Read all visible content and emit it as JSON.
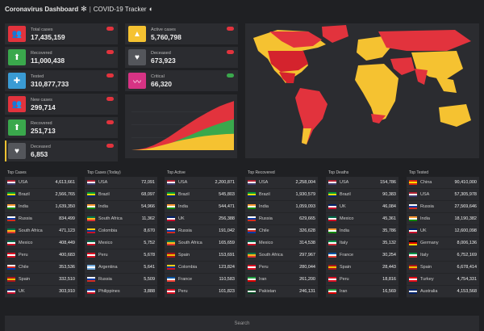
{
  "header": {
    "title": "Coronavirus Dashboard",
    "subtitle": "COVID-19 Tracker"
  },
  "stats": [
    {
      "label": "Total cases",
      "value": "17,435,159",
      "color": "#e2333d",
      "icon": "people-icon"
    },
    {
      "label": "Recovered",
      "value": "11,000,438",
      "color": "#3aa84c",
      "icon": "arrow-up-icon"
    },
    {
      "label": "Tested",
      "value": "310,877,733",
      "color": "#3a9bd4",
      "icon": "syringe-icon"
    },
    {
      "label": "New cases",
      "value": "299,714",
      "color": "#e2333d",
      "icon": "people-icon"
    },
    {
      "label": "Recovered",
      "value": "251,713",
      "color": "#3aa84c",
      "icon": "arrow-up-icon"
    },
    {
      "label": "Deceased",
      "value": "6,853",
      "color": "#54565b",
      "icon": "broken-heart-icon"
    },
    {
      "label": "Active cases",
      "value": "5,760,798",
      "color": "#f5c231",
      "icon": "warning-icon"
    },
    {
      "label": "Deceased",
      "value": "673,923",
      "color": "#54565b",
      "icon": "broken-heart-icon"
    },
    {
      "label": "Critical",
      "value": "66,320",
      "color": "#d63384",
      "icon": "pulse-icon"
    }
  ],
  "chart_data": {
    "type": "area",
    "series": [
      {
        "color": "#e2333d",
        "values": [
          0,
          0.3,
          0.8,
          1.7,
          3.0,
          4.5,
          6.2,
          8.0,
          9.7,
          11.3,
          12.8,
          14.2,
          15.5,
          16.5,
          17.4
        ]
      },
      {
        "color": "#3aa84c",
        "values": [
          0,
          0.1,
          0.3,
          0.7,
          1.3,
          2.1,
          3.1,
          4.2,
          5.3,
          6.4,
          7.5,
          8.5,
          9.4,
          10.2,
          11.0
        ]
      },
      {
        "color": "#f5c231",
        "values": [
          0,
          0.15,
          0.4,
          0.9,
          1.6,
          2.3,
          3.0,
          3.6,
          4.1,
          4.6,
          5.0,
          5.3,
          5.5,
          5.7,
          5.8
        ]
      }
    ]
  },
  "tables": [
    {
      "title": "Top Cases",
      "rows": [
        {
          "country": "USA",
          "value": "4,613,661",
          "flag": "us"
        },
        {
          "country": "Brazil",
          "value": "2,566,765",
          "flag": "br"
        },
        {
          "country": "India",
          "value": "1,639,350",
          "flag": "in"
        },
        {
          "country": "Russia",
          "value": "834,499",
          "flag": "ru"
        },
        {
          "country": "South Africa",
          "value": "471,123",
          "flag": "za"
        },
        {
          "country": "Mexico",
          "value": "408,449",
          "flag": "mx"
        },
        {
          "country": "Peru",
          "value": "400,683",
          "flag": "pe"
        },
        {
          "country": "Chile",
          "value": "353,536",
          "flag": "cl"
        },
        {
          "country": "Spain",
          "value": "332,510",
          "flag": "es"
        },
        {
          "country": "UK",
          "value": "303,910",
          "flag": "gb"
        }
      ]
    },
    {
      "title": "Top Cases (Today)",
      "rows": [
        {
          "country": "USA",
          "value": "72,091",
          "flag": "us"
        },
        {
          "country": "Brazil",
          "value": "68,097",
          "flag": "br"
        },
        {
          "country": "India",
          "value": "54,966",
          "flag": "in"
        },
        {
          "country": "South Africa",
          "value": "11,362",
          "flag": "za"
        },
        {
          "country": "Colombia",
          "value": "8,670",
          "flag": "co"
        },
        {
          "country": "Mexico",
          "value": "5,752",
          "flag": "mx"
        },
        {
          "country": "Peru",
          "value": "5,678",
          "flag": "pe"
        },
        {
          "country": "Argentina",
          "value": "5,641",
          "flag": "ar"
        },
        {
          "country": "Russia",
          "value": "5,509",
          "flag": "ru"
        },
        {
          "country": "Philippines",
          "value": "3,888",
          "flag": "ph"
        }
      ]
    },
    {
      "title": "Top Active",
      "rows": [
        {
          "country": "USA",
          "value": "2,200,871",
          "flag": "us"
        },
        {
          "country": "Brazil",
          "value": "545,803",
          "flag": "br"
        },
        {
          "country": "India",
          "value": "544,471",
          "flag": "in"
        },
        {
          "country": "UK",
          "value": "256,388",
          "flag": "gb"
        },
        {
          "country": "Russia",
          "value": "191,042",
          "flag": "ru"
        },
        {
          "country": "South Africa",
          "value": "165,659",
          "flag": "za"
        },
        {
          "country": "Spain",
          "value": "153,691",
          "flag": "es"
        },
        {
          "country": "Colombia",
          "value": "123,824",
          "flag": "co"
        },
        {
          "country": "France",
          "value": "110,583",
          "flag": "fr"
        },
        {
          "country": "Peru",
          "value": "101,823",
          "flag": "pe"
        }
      ]
    },
    {
      "title": "Top Recovered",
      "rows": [
        {
          "country": "USA",
          "value": "2,258,004",
          "flag": "us"
        },
        {
          "country": "Brazil",
          "value": "1,930,579",
          "flag": "br"
        },
        {
          "country": "India",
          "value": "1,059,093",
          "flag": "in"
        },
        {
          "country": "Russia",
          "value": "629,665",
          "flag": "ru"
        },
        {
          "country": "Chile",
          "value": "326,628",
          "flag": "cl"
        },
        {
          "country": "Mexico",
          "value": "314,538",
          "flag": "mx"
        },
        {
          "country": "South Africa",
          "value": "297,967",
          "flag": "za"
        },
        {
          "country": "Peru",
          "value": "280,044",
          "flag": "pe"
        },
        {
          "country": "Iran",
          "value": "261,200",
          "flag": "ir"
        },
        {
          "country": "Pakistan",
          "value": "246,131",
          "flag": "pk"
        }
      ]
    },
    {
      "title": "Top Deaths",
      "rows": [
        {
          "country": "USA",
          "value": "154,786",
          "flag": "us"
        },
        {
          "country": "Brazil",
          "value": "90,383",
          "flag": "br"
        },
        {
          "country": "UK",
          "value": "46,084",
          "flag": "gb"
        },
        {
          "country": "Mexico",
          "value": "45,361",
          "flag": "mx"
        },
        {
          "country": "India",
          "value": "35,786",
          "flag": "in"
        },
        {
          "country": "Italy",
          "value": "35,132",
          "flag": "it"
        },
        {
          "country": "France",
          "value": "30,254",
          "flag": "fr"
        },
        {
          "country": "Spain",
          "value": "28,443",
          "flag": "es"
        },
        {
          "country": "Peru",
          "value": "18,816",
          "flag": "pe"
        },
        {
          "country": "Iran",
          "value": "16,569",
          "flag": "ir"
        }
      ]
    },
    {
      "title": "Top Tested",
      "rows": [
        {
          "country": "China",
          "value": "90,410,000",
          "flag": "cn"
        },
        {
          "country": "USA",
          "value": "57,305,978",
          "flag": "us"
        },
        {
          "country": "Russia",
          "value": "27,569,646",
          "flag": "ru"
        },
        {
          "country": "India",
          "value": "18,190,382",
          "flag": "in"
        },
        {
          "country": "UK",
          "value": "12,600,098",
          "flag": "gb"
        },
        {
          "country": "Germany",
          "value": "8,006,136",
          "flag": "de"
        },
        {
          "country": "Italy",
          "value": "6,752,169",
          "flag": "it"
        },
        {
          "country": "Spain",
          "value": "6,678,414",
          "flag": "es"
        },
        {
          "country": "Turkey",
          "value": "4,754,331",
          "flag": "tr"
        },
        {
          "country": "Australia",
          "value": "4,153,568",
          "flag": "au"
        }
      ]
    }
  ],
  "search": {
    "placeholder": "Search"
  }
}
